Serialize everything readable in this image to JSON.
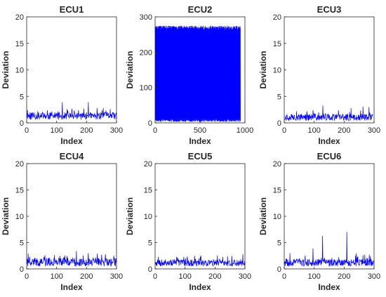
{
  "chart_data": [
    {
      "title": "ECU1",
      "type": "line",
      "xlabel": "Index",
      "ylabel": "Deviation",
      "xlim": [
        0,
        300
      ],
      "ylim": [
        0,
        20
      ],
      "xticks": [
        0,
        100,
        200,
        300
      ],
      "yticks": [
        0,
        5,
        10,
        15,
        20
      ],
      "grid": false,
      "n": 300,
      "base": 0.6,
      "amp": 1.4,
      "seed": 11,
      "spikes": [
        [
          20,
          2.0
        ],
        [
          68,
          2.4
        ],
        [
          118,
          3.9
        ],
        [
          150,
          2.7
        ],
        [
          190,
          2.7
        ],
        [
          205,
          3.9
        ],
        [
          255,
          2.8
        ],
        [
          278,
          2.6
        ]
      ],
      "series": [
        {
          "color": "#0000ff",
          "values": []
        }
      ]
    },
    {
      "title": "ECU2",
      "type": "line",
      "xlabel": "Index",
      "ylabel": "Deviation",
      "xlim": [
        0,
        1000
      ],
      "ylim": [
        0,
        300
      ],
      "xticks": [
        0,
        500,
        1000
      ],
      "yticks": [
        0,
        100,
        200,
        300
      ],
      "grid": false,
      "n": 950,
      "mode": "dense",
      "hi": 275,
      "lo": 3,
      "seed": 23,
      "series": [
        {
          "color": "#0000ff",
          "values": []
        }
      ]
    },
    {
      "title": "ECU3",
      "type": "line",
      "xlabel": "Index",
      "ylabel": "Deviation",
      "xlim": [
        0,
        300
      ],
      "ylim": [
        0,
        20
      ],
      "xticks": [
        0,
        100,
        200,
        300
      ],
      "yticks": [
        0,
        5,
        10,
        15,
        20
      ],
      "grid": false,
      "n": 295,
      "base": 0.4,
      "amp": 1.3,
      "seed": 37,
      "spikes": [
        [
          40,
          2.2
        ],
        [
          95,
          2.4
        ],
        [
          128,
          3.3
        ],
        [
          180,
          2.4
        ],
        [
          222,
          2.8
        ],
        [
          262,
          3.1
        ],
        [
          282,
          3.0
        ]
      ],
      "series": [
        {
          "color": "#0000ff",
          "values": []
        }
      ]
    },
    {
      "title": "ECU4",
      "type": "line",
      "xlabel": "Index",
      "ylabel": "Deviation",
      "xlim": [
        0,
        300
      ],
      "ylim": [
        0,
        20
      ],
      "xticks": [
        0,
        100,
        200,
        300
      ],
      "yticks": [
        0,
        5,
        10,
        15,
        20
      ],
      "grid": false,
      "n": 300,
      "base": 0.5,
      "amp": 1.6,
      "seed": 41,
      "spikes": [
        [
          4,
          2.9
        ],
        [
          60,
          2.6
        ],
        [
          110,
          2.5
        ],
        [
          165,
          3.4
        ],
        [
          205,
          3.0
        ],
        [
          235,
          2.9
        ],
        [
          262,
          2.8
        ],
        [
          290,
          2.5
        ]
      ],
      "series": [
        {
          "color": "#0000ff",
          "values": []
        }
      ]
    },
    {
      "title": "ECU5",
      "type": "line",
      "xlabel": "Index",
      "ylabel": "Deviation",
      "xlim": [
        0,
        300
      ],
      "ylim": [
        0,
        20
      ],
      "xticks": [
        0,
        100,
        200,
        300
      ],
      "yticks": [
        0,
        5,
        10,
        15,
        20
      ],
      "grid": false,
      "n": 300,
      "base": 0.5,
      "amp": 1.3,
      "seed": 53,
      "spikes": [
        [
          10,
          2.3
        ],
        [
          95,
          2.3
        ],
        [
          150,
          2.3
        ],
        [
          225,
          2.3
        ],
        [
          255,
          2.5
        ],
        [
          292,
          2.8
        ]
      ],
      "series": [
        {
          "color": "#0000ff",
          "values": []
        }
      ]
    },
    {
      "title": "ECU6",
      "type": "line",
      "xlabel": "Index",
      "ylabel": "Deviation",
      "xlim": [
        0,
        300
      ],
      "ylim": [
        0,
        20
      ],
      "xticks": [
        0,
        100,
        200,
        300
      ],
      "yticks": [
        0,
        5,
        10,
        15,
        20
      ],
      "grid": false,
      "n": 300,
      "base": 0.5,
      "amp": 1.4,
      "seed": 67,
      "spikes": [
        [
          18,
          3.0
        ],
        [
          95,
          3.9
        ],
        [
          127,
          6.3
        ],
        [
          208,
          7.0
        ],
        [
          240,
          3.0
        ],
        [
          268,
          2.7
        ]
      ],
      "series": [
        {
          "color": "#0000ff",
          "values": []
        }
      ]
    }
  ]
}
